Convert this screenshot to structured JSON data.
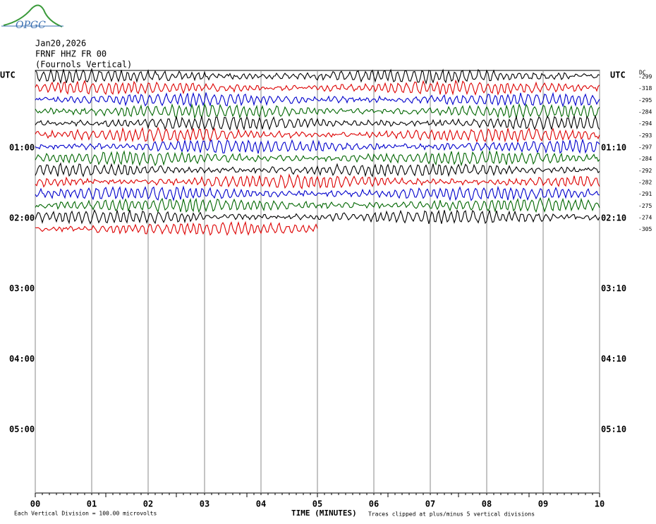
{
  "chart_data": {
    "type": "helicorder",
    "logo": "OPGC",
    "header": [
      "Jan20,2026",
      "FRNF HHZ FR 00",
      "(Fournols Vertical)"
    ],
    "dc_label": "DC",
    "left_labels": [
      "UTC",
      "01:00",
      "02:00",
      "03:00",
      "04:00",
      "05:00"
    ],
    "right_labels": [
      "UTC",
      "01:10",
      "02:10",
      "03:10",
      "04:10",
      "05:10"
    ],
    "xlim": [
      0,
      10
    ],
    "xticks": [
      {
        "value": 0,
        "label": "00"
      },
      {
        "value": 1,
        "label": "01"
      },
      {
        "value": 2,
        "label": "02"
      },
      {
        "value": 3,
        "label": "03"
      },
      {
        "value": 4,
        "label": "04"
      },
      {
        "value": 5,
        "label": "05"
      },
      {
        "value": 6,
        "label": "06"
      },
      {
        "value": 7,
        "label": "07"
      },
      {
        "value": 8,
        "label": "08"
      },
      {
        "value": 9,
        "label": "09"
      },
      {
        "value": 10,
        "label": "10"
      }
    ],
    "xlabel": "TIME (MINUTES)",
    "footer_left": "Each Vertical Division =  100.00 microvolts",
    "footer_right": "Traces clipped at plus/minus 5 vertical divisions",
    "traces": [
      {
        "color": "#000000",
        "dc": -299,
        "end": 10
      },
      {
        "color": "#dd0000",
        "dc": -318,
        "end": 10
      },
      {
        "color": "#0000cc",
        "dc": -295,
        "end": 10
      },
      {
        "color": "#006600",
        "dc": -284,
        "end": 10
      },
      {
        "color": "#000000",
        "dc": -294,
        "end": 10
      },
      {
        "color": "#dd0000",
        "dc": -293,
        "end": 10
      },
      {
        "color": "#0000cc",
        "dc": -297,
        "end": 10
      },
      {
        "color": "#006600",
        "dc": -284,
        "end": 10
      },
      {
        "color": "#000000",
        "dc": -292,
        "end": 10
      },
      {
        "color": "#dd0000",
        "dc": -282,
        "end": 10
      },
      {
        "color": "#0000cc",
        "dc": -291,
        "end": 10
      },
      {
        "color": "#006600",
        "dc": -275,
        "end": 10
      },
      {
        "color": "#000000",
        "dc": -274,
        "end": 10
      },
      {
        "color": "#dd0000",
        "dc": -305,
        "end": 5
      }
    ]
  }
}
